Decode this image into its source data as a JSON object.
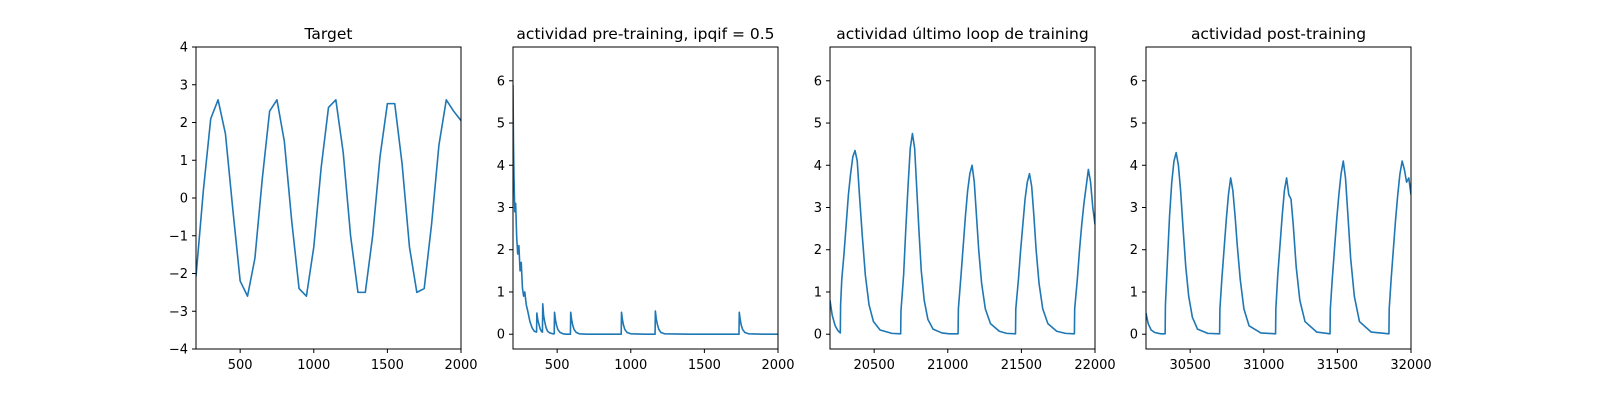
{
  "chart_data": [
    {
      "type": "line",
      "title": "Target",
      "xlim": [
        200,
        2000
      ],
      "ylim": [
        -4,
        4
      ],
      "xticks": [
        500,
        1000,
        1500,
        2000
      ],
      "yticks": [
        -4,
        -3,
        -2,
        -1,
        0,
        1,
        2,
        3,
        4
      ],
      "series": [
        {
          "color": "#1f77b4",
          "x": [
            200,
            250,
            300,
            350,
            400,
            450,
            500,
            550,
            600,
            650,
            700,
            750,
            800,
            850,
            900,
            950,
            1000,
            1050,
            1100,
            1150,
            1200,
            1250,
            1300,
            1350,
            1400,
            1450,
            1500,
            1550,
            1600,
            1650,
            1700,
            1750,
            1800,
            1850,
            1900,
            1950,
            2000
          ],
          "y": [
            -2.08,
            0.2,
            2.1,
            2.6,
            1.7,
            -0.3,
            -2.2,
            -2.6,
            -1.6,
            0.5,
            2.3,
            2.6,
            1.5,
            -0.6,
            -2.4,
            -2.6,
            -1.3,
            0.8,
            2.4,
            2.6,
            1.2,
            -1.0,
            -2.5,
            -2.5,
            -1.0,
            1.1,
            2.5,
            2.5,
            0.9,
            -1.3,
            -2.5,
            -2.4,
            -0.7,
            1.4,
            2.6,
            2.3,
            2.05
          ]
        }
      ]
    },
    {
      "type": "line",
      "title": "actividad pre-training, ipqif = 0.5",
      "xlim": [
        200,
        2000
      ],
      "ylim": [
        -0.35,
        6.8
      ],
      "xticks": [
        500,
        1000,
        1500,
        2000
      ],
      "yticks": [
        0,
        1,
        2,
        3,
        4,
        5,
        6
      ],
      "series": [
        {
          "color": "#1f77b4",
          "x": [
            200,
            203,
            207,
            212,
            218,
            225,
            232,
            240,
            248,
            256,
            264,
            272,
            280,
            290,
            300,
            315,
            330,
            345,
            360,
            362,
            368,
            375,
            385,
            395,
            400,
            402,
            408,
            415,
            425,
            435,
            450,
            470,
            480,
            482,
            488,
            495,
            505,
            520,
            540,
            560,
            580,
            590,
            592,
            598,
            605,
            615,
            630,
            650,
            700,
            800,
            900,
            935,
            937,
            943,
            950,
            960,
            975,
            1000,
            1100,
            1165,
            1167,
            1173,
            1180,
            1190,
            1205,
            1230,
            1400,
            1600,
            1735,
            1737,
            1743,
            1750,
            1760,
            1775,
            1800,
            1900,
            2000
          ],
          "y": [
            5.9,
            4.6,
            3.7,
            2.9,
            3.1,
            2.3,
            1.9,
            2.1,
            1.5,
            1.7,
            1.1,
            0.9,
            1.0,
            0.7,
            0.55,
            0.3,
            0.15,
            0.07,
            0.05,
            0.5,
            0.35,
            0.25,
            0.12,
            0.06,
            0.05,
            0.72,
            0.45,
            0.3,
            0.15,
            0.07,
            0.03,
            0.01,
            0.01,
            0.52,
            0.35,
            0.22,
            0.11,
            0.04,
            0.01,
            0.0,
            0.0,
            0.0,
            0.52,
            0.35,
            0.22,
            0.11,
            0.04,
            0.01,
            0.0,
            0.0,
            0.0,
            0.0,
            0.52,
            0.35,
            0.22,
            0.11,
            0.04,
            0.01,
            0.0,
            0.0,
            0.55,
            0.37,
            0.24,
            0.12,
            0.04,
            0.01,
            0.0,
            0.0,
            0.0,
            0.52,
            0.35,
            0.22,
            0.11,
            0.04,
            0.01,
            0.0,
            0.0
          ]
        }
      ]
    },
    {
      "type": "line",
      "title": "actividad último loop de training",
      "xlim": [
        20200,
        22000
      ],
      "ylim": [
        -0.35,
        6.8
      ],
      "xticks": [
        20500,
        21000,
        21500,
        22000
      ],
      "yticks": [
        0,
        1,
        2,
        3,
        4,
        5,
        6
      ],
      "series": [
        {
          "color": "#1f77b4",
          "x": [
            20200,
            20215,
            20235,
            20255,
            20270,
            20272,
            20280,
            20295,
            20310,
            20325,
            20340,
            20355,
            20370,
            20385,
            20400,
            20420,
            20440,
            20465,
            20495,
            20540,
            20620,
            20680,
            20682,
            20700,
            20715,
            20730,
            20745,
            20760,
            20775,
            20790,
            20805,
            20820,
            20840,
            20865,
            20900,
            20960,
            21010,
            21070,
            21072,
            21090,
            21105,
            21120,
            21135,
            21150,
            21165,
            21180,
            21195,
            21210,
            21230,
            21255,
            21290,
            21350,
            21400,
            21460,
            21462,
            21480,
            21495,
            21510,
            21525,
            21540,
            21555,
            21570,
            21585,
            21600,
            21620,
            21645,
            21680,
            21740,
            21800,
            21860,
            21862,
            21880,
            21895,
            21910,
            21925,
            21940,
            21955,
            21970,
            21985,
            22000
          ],
          "y": [
            0.8,
            0.45,
            0.2,
            0.08,
            0.03,
            0.7,
            1.3,
            1.9,
            2.6,
            3.3,
            3.8,
            4.2,
            4.35,
            4.1,
            3.3,
            2.3,
            1.4,
            0.7,
            0.3,
            0.1,
            0.02,
            0.01,
            0.55,
            1.4,
            2.5,
            3.5,
            4.4,
            4.75,
            4.4,
            3.4,
            2.4,
            1.5,
            0.8,
            0.35,
            0.12,
            0.03,
            0.01,
            0.01,
            0.6,
            1.4,
            2.1,
            2.8,
            3.4,
            3.8,
            4.0,
            3.6,
            2.8,
            2.0,
            1.2,
            0.6,
            0.25,
            0.07,
            0.02,
            0.01,
            0.6,
            1.3,
            2.0,
            2.6,
            3.2,
            3.6,
            3.8,
            3.5,
            2.8,
            2.0,
            1.2,
            0.6,
            0.25,
            0.07,
            0.02,
            0.01,
            0.6,
            1.3,
            2.0,
            2.6,
            3.1,
            3.5,
            3.9,
            3.6,
            3.0,
            2.6
          ]
        }
      ]
    },
    {
      "type": "line",
      "title": "actividad post-training",
      "xlim": [
        30200,
        32000
      ],
      "ylim": [
        -0.35,
        6.8
      ],
      "xticks": [
        30500,
        31000,
        31500,
        32000
      ],
      "yticks": [
        0,
        1,
        2,
        3,
        4,
        5,
        6
      ],
      "series": [
        {
          "color": "#1f77b4",
          "x": [
            30200,
            30215,
            30235,
            30260,
            30300,
            30330,
            30332,
            30345,
            30360,
            30375,
            30390,
            30405,
            30420,
            30435,
            30450,
            30470,
            30490,
            30515,
            30550,
            30620,
            30700,
            30702,
            30715,
            30730,
            30745,
            30760,
            30775,
            30790,
            30805,
            30820,
            30840,
            30865,
            30900,
            30980,
            31080,
            31082,
            31095,
            31110,
            31125,
            31140,
            31155,
            31170,
            31185,
            31200,
            31220,
            31245,
            31280,
            31360,
            31450,
            31452,
            31465,
            31480,
            31495,
            31510,
            31525,
            31540,
            31555,
            31570,
            31590,
            31615,
            31650,
            31730,
            31850,
            31852,
            31865,
            31880,
            31895,
            31910,
            31925,
            31940,
            31955,
            31970,
            31985,
            32000
          ],
          "y": [
            0.5,
            0.25,
            0.1,
            0.04,
            0.01,
            0.01,
            0.7,
            1.7,
            2.8,
            3.6,
            4.1,
            4.3,
            4.0,
            3.4,
            2.6,
            1.6,
            0.9,
            0.4,
            0.12,
            0.02,
            0.01,
            0.6,
            1.3,
            2.0,
            2.7,
            3.3,
            3.7,
            3.4,
            2.8,
            2.1,
            1.3,
            0.6,
            0.2,
            0.03,
            0.01,
            0.6,
            1.4,
            2.1,
            2.8,
            3.4,
            3.7,
            3.3,
            3.2,
            2.6,
            1.6,
            0.8,
            0.3,
            0.05,
            0.01,
            0.6,
            1.3,
            2.0,
            2.7,
            3.3,
            3.8,
            4.1,
            3.7,
            2.9,
            1.8,
            0.9,
            0.3,
            0.05,
            0.01,
            0.6,
            1.3,
            2.0,
            2.7,
            3.3,
            3.8,
            4.1,
            3.9,
            3.6,
            3.7,
            3.3
          ]
        }
      ]
    }
  ]
}
